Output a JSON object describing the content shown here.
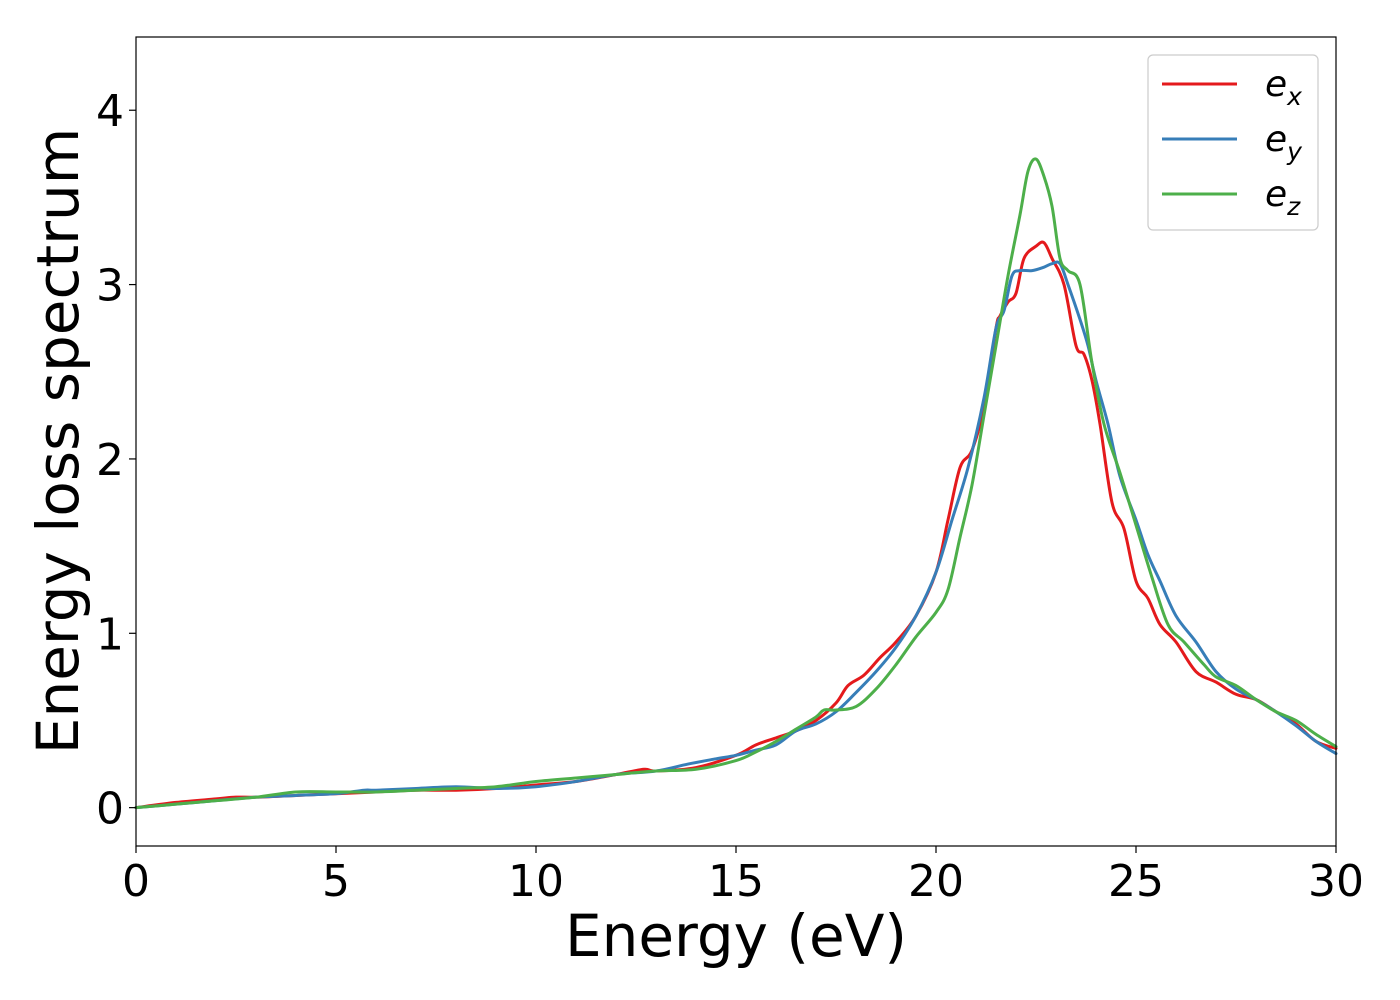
{
  "chart_data": {
    "type": "line",
    "title": "",
    "xlabel": "Energy (eV)",
    "ylabel": "Energy loss spectrum",
    "xlim": [
      0,
      30
    ],
    "ylim": [
      -0.22,
      4.42
    ],
    "xticks": [
      0,
      5,
      10,
      15,
      20,
      25,
      30
    ],
    "yticks": [
      0,
      1,
      2,
      3,
      4
    ],
    "grid": false,
    "legend_position": "top-right",
    "series": [
      {
        "name": "e",
        "subscript": "x",
        "color": "#e41a1c",
        "x": [
          0,
          1,
          2,
          2.5,
          3,
          4,
          5,
          6,
          7,
          8,
          9,
          10,
          11,
          12,
          12.7,
          13,
          14,
          15,
          15.5,
          16,
          16.5,
          17,
          17.5,
          17.8,
          18.2,
          18.6,
          19,
          19.5,
          20,
          20.3,
          20.6,
          20.9,
          21.2,
          21.5,
          21.6,
          21.8,
          22,
          22.2,
          22.5,
          22.7,
          22.9,
          23.2,
          23.5,
          23.7,
          23.9,
          24.1,
          24.4,
          24.7,
          25,
          25.3,
          25.6,
          26,
          26.5,
          27,
          27.5,
          28,
          28.5,
          29,
          29.5,
          30
        ],
        "y": [
          0,
          0.03,
          0.05,
          0.06,
          0.06,
          0.07,
          0.08,
          0.09,
          0.1,
          0.1,
          0.11,
          0.13,
          0.15,
          0.19,
          0.22,
          0.21,
          0.23,
          0.3,
          0.36,
          0.4,
          0.44,
          0.5,
          0.6,
          0.7,
          0.76,
          0.86,
          0.95,
          1.1,
          1.35,
          1.65,
          1.95,
          2.05,
          2.3,
          2.75,
          2.82,
          2.9,
          2.95,
          3.15,
          3.22,
          3.24,
          3.15,
          3.0,
          2.65,
          2.6,
          2.45,
          2.2,
          1.75,
          1.6,
          1.3,
          1.2,
          1.05,
          0.95,
          0.78,
          0.72,
          0.65,
          0.62,
          0.55,
          0.48,
          0.38,
          0.34
        ]
      },
      {
        "name": "e",
        "subscript": "y",
        "color": "#377eb8",
        "x": [
          0,
          1,
          2,
          3,
          4,
          5,
          5.7,
          6,
          7,
          8,
          9,
          10,
          11,
          12,
          13,
          13.8,
          14.5,
          15,
          15.5,
          16,
          16.5,
          17,
          17.5,
          18,
          18.5,
          19,
          19.5,
          20,
          20.4,
          20.8,
          21.2,
          21.5,
          21.7,
          21.9,
          22.1,
          22.4,
          22.7,
          22.9,
          23.1,
          23.3,
          23.6,
          23.8,
          24,
          24.3,
          24.6,
          25,
          25.3,
          25.6,
          26,
          26.5,
          27,
          27.5,
          28,
          28.5,
          29,
          29.5,
          30
        ],
        "y": [
          0,
          0.02,
          0.04,
          0.06,
          0.07,
          0.08,
          0.1,
          0.1,
          0.11,
          0.12,
          0.11,
          0.12,
          0.15,
          0.19,
          0.21,
          0.25,
          0.28,
          0.3,
          0.33,
          0.36,
          0.44,
          0.48,
          0.55,
          0.66,
          0.78,
          0.92,
          1.1,
          1.35,
          1.65,
          1.95,
          2.35,
          2.75,
          2.85,
          3.05,
          3.08,
          3.08,
          3.1,
          3.12,
          3.12,
          3.0,
          2.8,
          2.65,
          2.45,
          2.2,
          1.9,
          1.65,
          1.45,
          1.3,
          1.1,
          0.95,
          0.78,
          0.68,
          0.62,
          0.55,
          0.47,
          0.38,
          0.31
        ]
      },
      {
        "name": "e",
        "subscript": "z",
        "color": "#4daf4a",
        "x": [
          0,
          1,
          2,
          3,
          4,
          5,
          6,
          7,
          8,
          9,
          10,
          11,
          11.5,
          12,
          13,
          14,
          15,
          15.5,
          16,
          16.5,
          17,
          17.2,
          17.5,
          18,
          18.5,
          19,
          19.5,
          20,
          20.3,
          20.6,
          20.9,
          21.2,
          21.5,
          21.8,
          22.1,
          22.3,
          22.5,
          22.7,
          22.9,
          23.1,
          23.3,
          23.6,
          23.9,
          24.2,
          24.6,
          25,
          25.4,
          25.8,
          26.2,
          26.7,
          27,
          27.5,
          28,
          28.5,
          29,
          29.5,
          30
        ],
        "y": [
          0,
          0.02,
          0.04,
          0.06,
          0.09,
          0.09,
          0.09,
          0.1,
          0.11,
          0.12,
          0.15,
          0.17,
          0.18,
          0.19,
          0.21,
          0.22,
          0.27,
          0.32,
          0.38,
          0.45,
          0.52,
          0.56,
          0.56,
          0.58,
          0.68,
          0.82,
          0.98,
          1.12,
          1.25,
          1.55,
          1.85,
          2.25,
          2.65,
          3.05,
          3.4,
          3.65,
          3.72,
          3.62,
          3.45,
          3.15,
          3.08,
          3.0,
          2.55,
          2.2,
          1.92,
          1.62,
          1.32,
          1.05,
          0.95,
          0.82,
          0.75,
          0.7,
          0.62,
          0.55,
          0.5,
          0.42,
          0.35
        ]
      }
    ]
  }
}
